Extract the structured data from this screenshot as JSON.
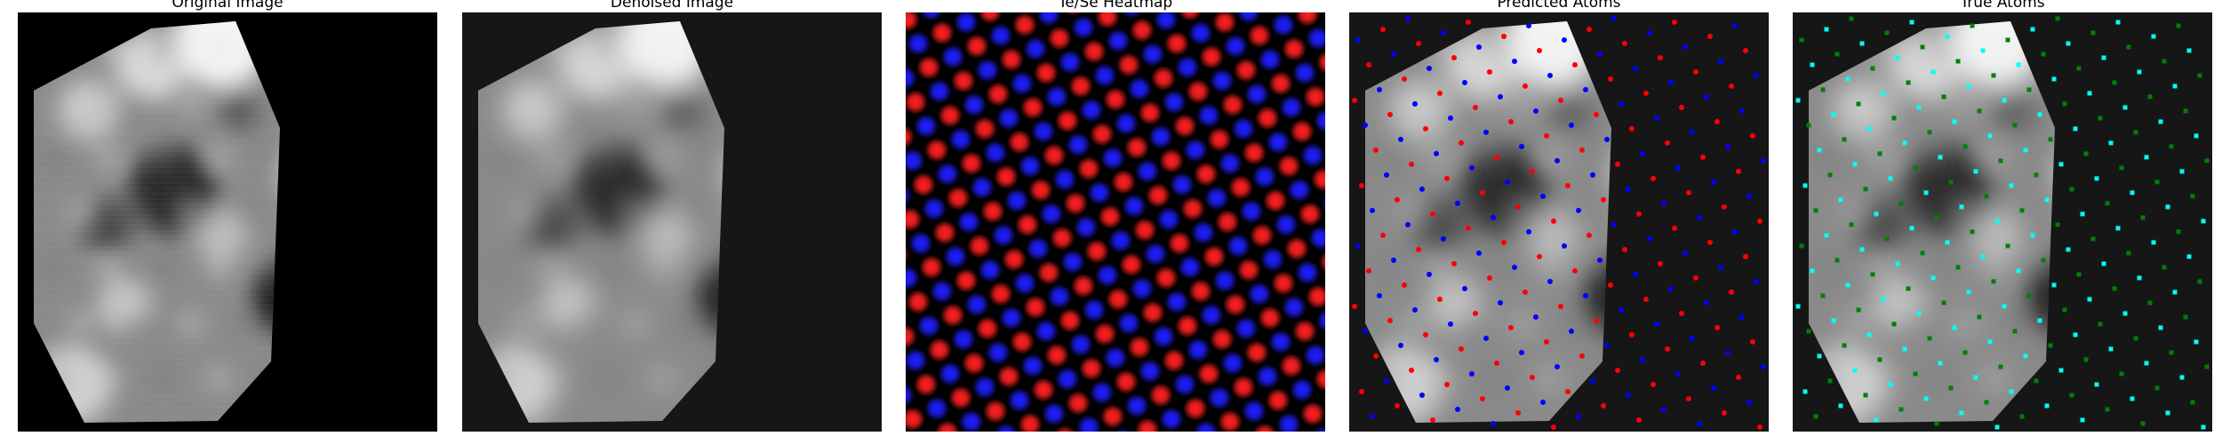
{
  "figure": {
    "panels": [
      {
        "title": "Original Image",
        "id": "original"
      },
      {
        "title": "Denoised Image",
        "id": "denoised"
      },
      {
        "title": "Te/Se Heatmap",
        "id": "heatmap"
      },
      {
        "title": "Predicted Atoms",
        "id": "predicted"
      },
      {
        "title": "True Atoms",
        "id": "true"
      }
    ]
  },
  "colors": {
    "background": "#000000",
    "te": "#ff2020",
    "se": "#1e1eff",
    "predicted_te": "#ff0000",
    "predicted_se": "#0000ff",
    "true_a": "#00ffff",
    "true_b": "#008000"
  }
}
